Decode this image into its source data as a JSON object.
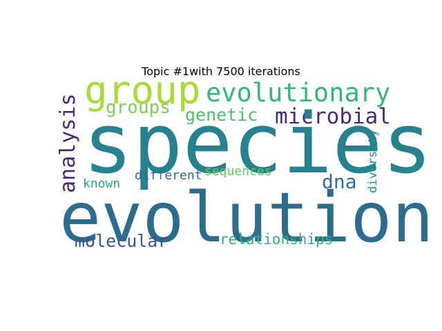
{
  "title": "Topic #1with 7500 iterations",
  "words": {
    "species": "species",
    "evolution": "evolution",
    "group": "group",
    "evolutionary": "evolutionary",
    "groups": "groups",
    "genetic": "genetic",
    "microbial": "microbial",
    "analysis": "analysis",
    "dna": "dna",
    "known": "known",
    "different": "different",
    "sequences": "sequences",
    "diversity": "diversity",
    "molecular": "molecular",
    "relationships": "relationships"
  }
}
